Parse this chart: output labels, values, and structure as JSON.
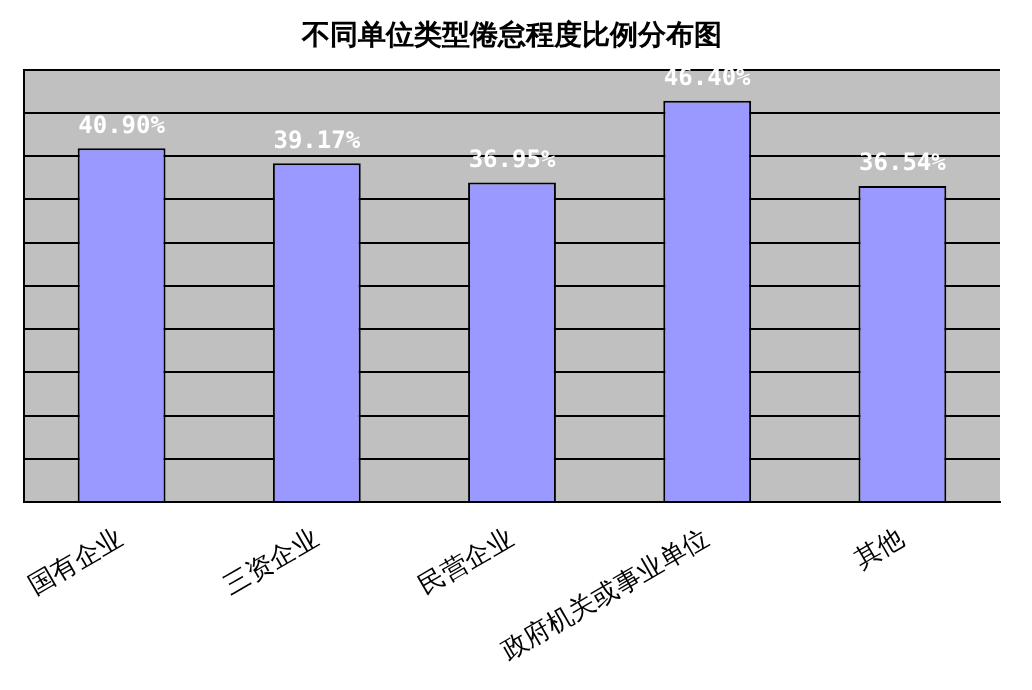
{
  "chart_data": {
    "type": "bar",
    "title": "不同单位类型倦怠程度比例分布图",
    "categories": [
      "国有企业",
      "三资企业",
      "民营企业",
      "政府机关或事业单位",
      "其他"
    ],
    "values": [
      40.9,
      39.17,
      36.95,
      46.4,
      36.54
    ],
    "color": "#9999ff",
    "value_labels": [
      "40.90%",
      "39.17%",
      "36.95%",
      "46.40%",
      "36.54%"
    ],
    "ylim": [
      0,
      50
    ],
    "yticks": [
      {
        "value": 0,
        "label": null
      },
      {
        "value": 5,
        "label": null
      },
      {
        "value": 10,
        "label": null
      },
      {
        "value": 15,
        "label": null
      },
      {
        "value": 20,
        "label": null
      },
      {
        "value": 25,
        "label": null
      },
      {
        "value": 30,
        "label": null
      },
      {
        "value": 35,
        "label": null
      },
      {
        "value": 40,
        "label": null
      },
      {
        "value": 45,
        "label": null
      },
      {
        "value": 50,
        "label": null
      }
    ],
    "grid": "y",
    "tick_labels": "x"
  }
}
